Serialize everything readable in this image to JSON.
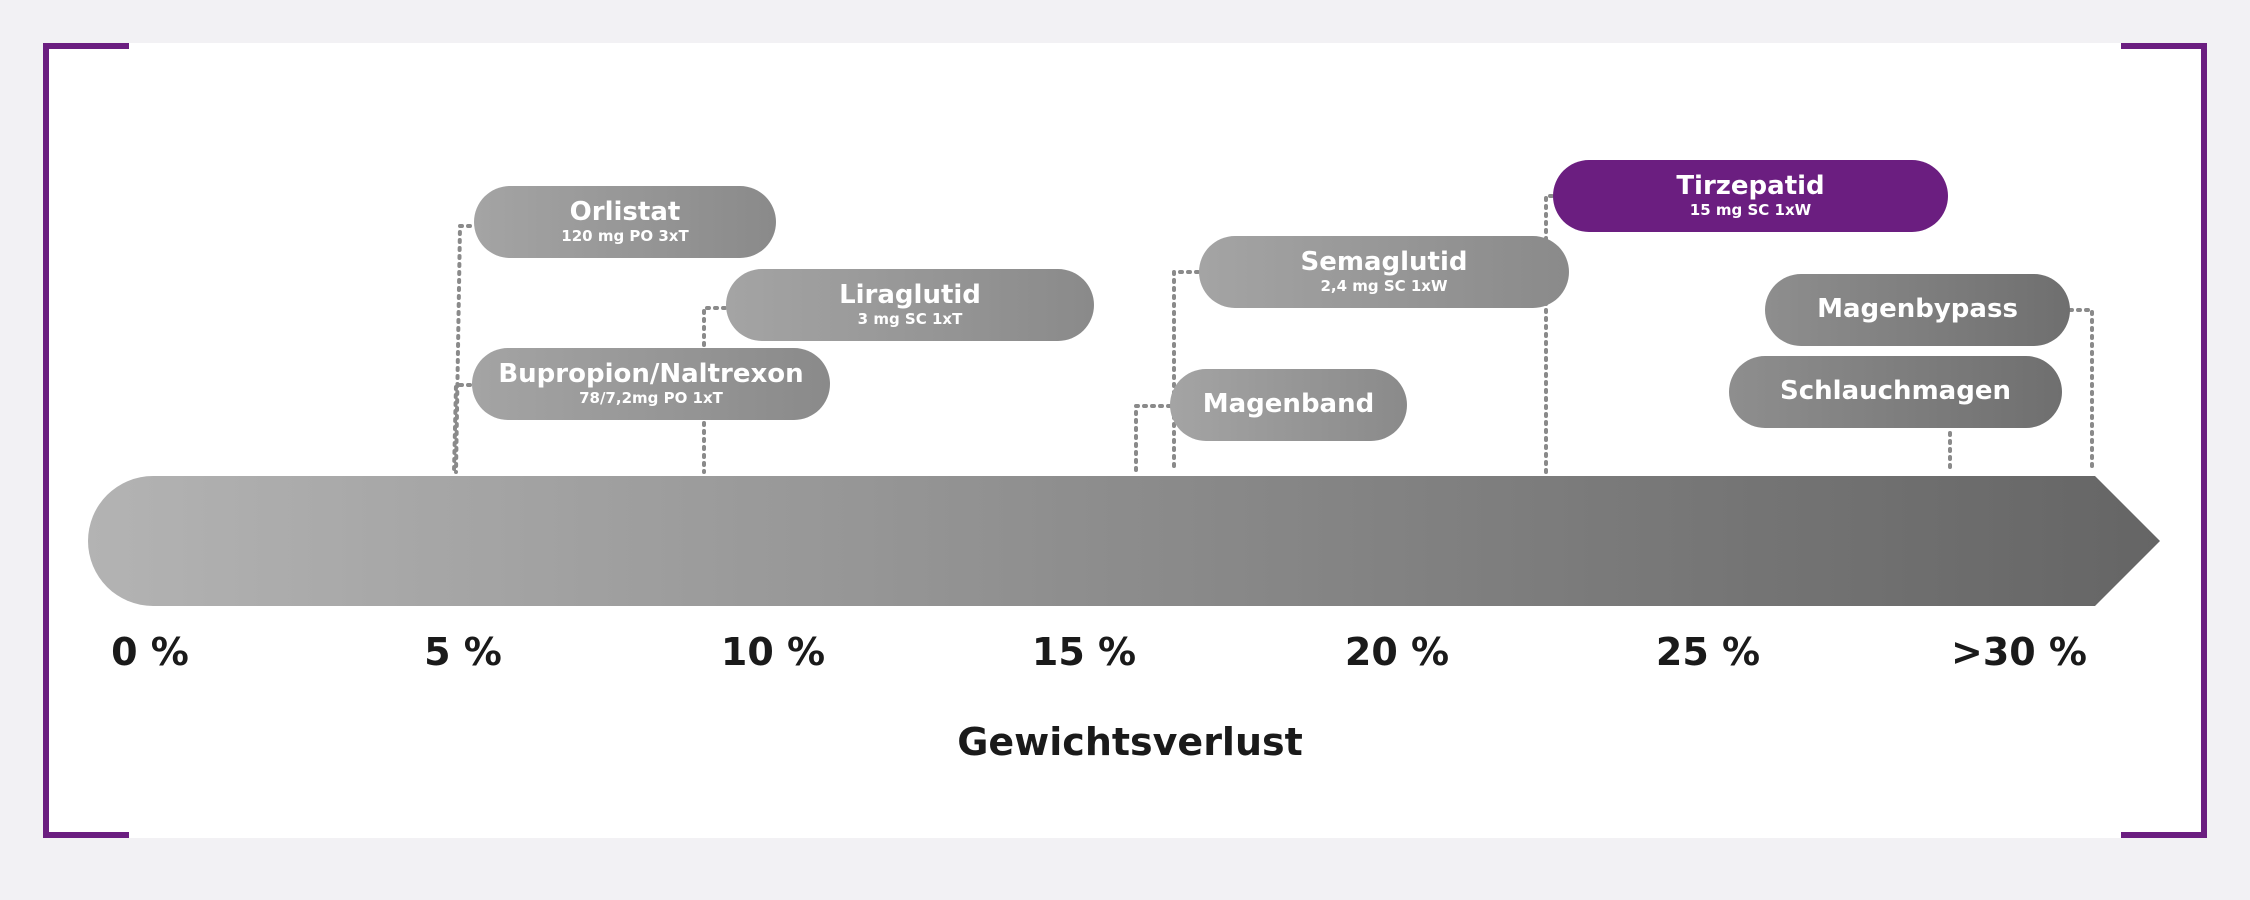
{
  "diagram": {
    "axis_title": "Gewichtsverlust",
    "tick_labels": [
      "0 %",
      "5 %",
      "10 %",
      "15 %",
      "20 %",
      "25 %",
      ">30 %"
    ],
    "treatments": [
      {
        "id": "orlistat",
        "name": "Orlistat",
        "dose": "120 mg PO 3xT",
        "style": "gray"
      },
      {
        "id": "liraglutid",
        "name": "Liraglutid",
        "dose": "3 mg SC 1xT",
        "style": "gray"
      },
      {
        "id": "bupropion-naltrexon",
        "name": "Bupropion/Naltrexon",
        "dose": "78/7,2mg PO 1xT",
        "style": "gray"
      },
      {
        "id": "semaglutid",
        "name": "Semaglutid",
        "dose": "2,4 mg SC 1xW",
        "style": "gray"
      },
      {
        "id": "magenband",
        "name": "Magenband",
        "dose": "",
        "style": "gray"
      },
      {
        "id": "tirzepatid",
        "name": "Tirzepatid",
        "dose": "15 mg SC 1xW",
        "style": "purple"
      },
      {
        "id": "magenbypass",
        "name": "Magenbypass",
        "dose": "",
        "style": "dark"
      },
      {
        "id": "schlauchmagen",
        "name": "Schlauchmagen",
        "dose": "",
        "style": "dark"
      }
    ],
    "colors": {
      "accent": "#6b1e80",
      "arrow_start": "#b3b3b3",
      "arrow_end": "#656565",
      "connector": "#8a8a8a"
    }
  }
}
